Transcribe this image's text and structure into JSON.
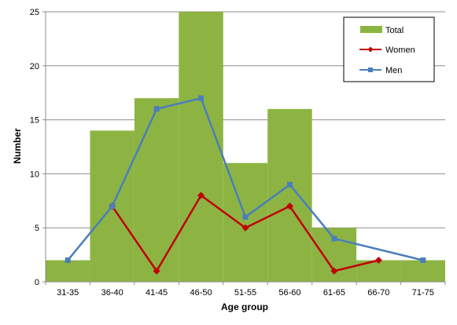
{
  "chart_data": {
    "type": "bar",
    "title": "",
    "xlabel": "Age group",
    "ylabel": "Number",
    "ylim": [
      0,
      25
    ],
    "yticks": [
      0,
      5,
      10,
      15,
      20,
      25
    ],
    "grid": true,
    "legend_position": "top-right",
    "categories": [
      "31-35",
      "36-40",
      "41-45",
      "46-50",
      "51-55",
      "56-60",
      "61-65",
      "66-70",
      "71-75"
    ],
    "series": [
      {
        "name": "Total",
        "kind": "bar",
        "color": "#8db443",
        "values": [
          2,
          14,
          17,
          25,
          11,
          16,
          5,
          2,
          2
        ]
      },
      {
        "name": "Women",
        "kind": "line",
        "marker": "diamond",
        "color": "#c00000",
        "values": [
          null,
          7,
          1,
          8,
          5,
          7,
          1,
          2,
          null
        ]
      },
      {
        "name": "Men",
        "kind": "line",
        "marker": "square",
        "color": "#4a7ebb",
        "values": [
          2,
          7,
          16,
          17,
          6,
          9,
          4,
          null,
          2
        ]
      }
    ]
  }
}
